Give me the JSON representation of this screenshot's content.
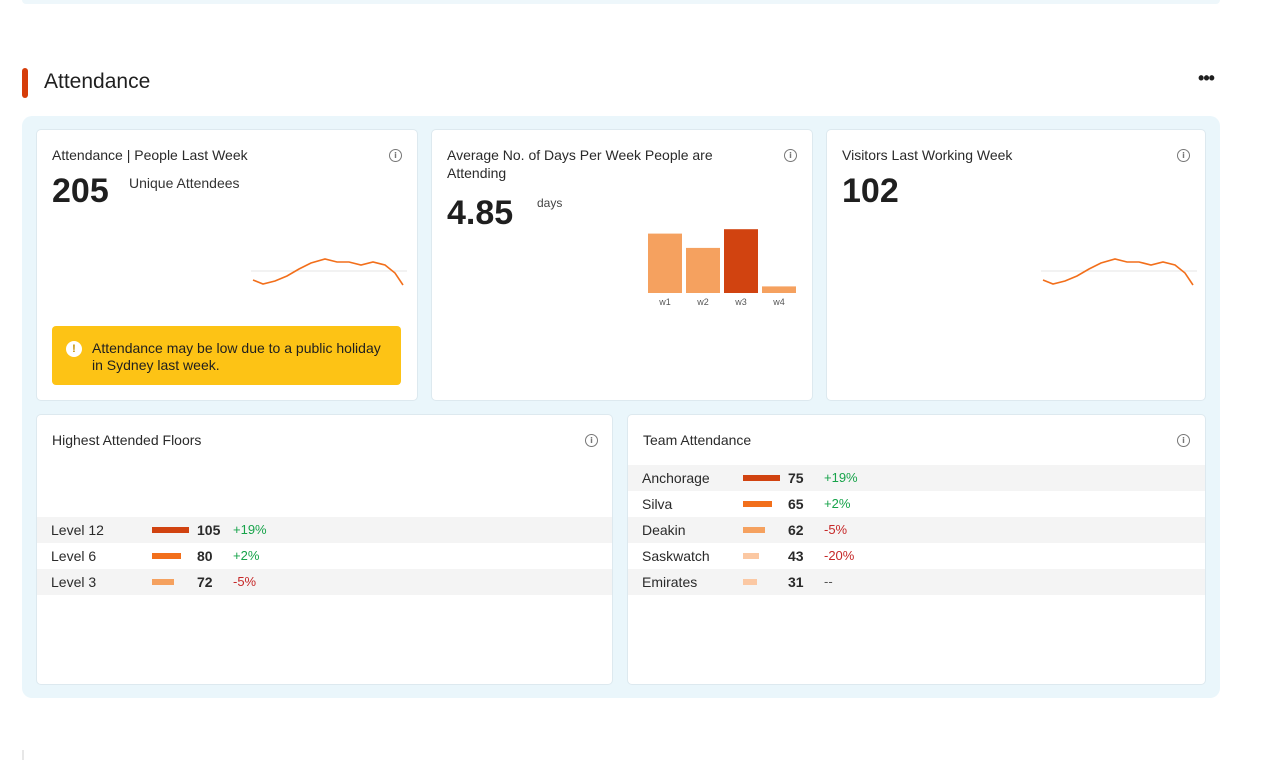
{
  "section": {
    "title": "Attendance",
    "more_label": "•••"
  },
  "cards": {
    "people": {
      "title": "Attendance | People Last Week",
      "value": "205",
      "unit": "Unique Attendees",
      "alert": "Attendance may be low due to a public holiday in Sydney last week."
    },
    "avg_days": {
      "title": "Average No. of Days Per Week People are Attending",
      "value": "4.85",
      "unit": "days"
    },
    "visitors": {
      "title": "Visitors Last Working Week",
      "value": "102"
    },
    "floors": {
      "title": "Highest Attended Floors",
      "rows": [
        {
          "name": "Level 12",
          "value": "105",
          "delta": "+19%"
        },
        {
          "name": "Level 6",
          "value": "80",
          "delta": "+2%"
        },
        {
          "name": "Level 3",
          "value": "72",
          "delta": "-5%"
        }
      ]
    },
    "teams": {
      "title": "Team Attendance",
      "rows": [
        {
          "name": "Anchorage",
          "value": "75",
          "delta": "+19%"
        },
        {
          "name": "Silva",
          "value": "65",
          "delta": "+2%"
        },
        {
          "name": "Deakin",
          "value": "62",
          "delta": "-5%"
        },
        {
          "name": "Saskwatch",
          "value": "43",
          "delta": "-20%"
        },
        {
          "name": "Emirates",
          "value": "31",
          "delta": "--"
        }
      ]
    }
  },
  "chart_data": {
    "type": "bar",
    "categories": [
      "w1",
      "w2",
      "w3",
      "w4"
    ],
    "values": [
      5.4,
      4.1,
      5.8,
      0.6
    ],
    "ylim": [
      0,
      6
    ],
    "highlight_index": 2
  },
  "colors": {
    "accent": "#d63d0a",
    "bar_dark": "#d14310",
    "bar_mid": "#f26f1b",
    "bar_light": "#f5a15f",
    "bar_pale": "#fbc8a3",
    "alert": "#fdc315",
    "up": "#17a34a",
    "down": "#c62828"
  }
}
